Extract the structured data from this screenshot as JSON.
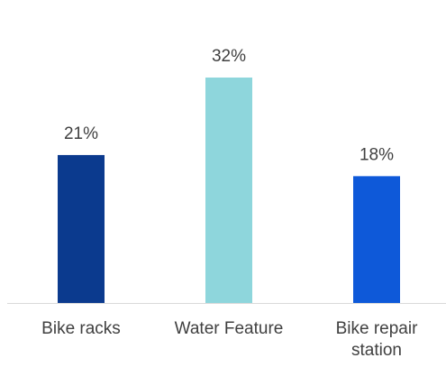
{
  "chart_data": {
    "type": "bar",
    "categories": [
      "Bike racks",
      "Water Feature",
      "Bike repair station"
    ],
    "values": [
      21,
      32,
      18
    ],
    "value_labels": [
      "21%",
      "32%",
      "18%"
    ],
    "colors": [
      "#0b3a8e",
      "#8ed6dc",
      "#0e59d9"
    ],
    "ylim": [
      0,
      40
    ]
  }
}
